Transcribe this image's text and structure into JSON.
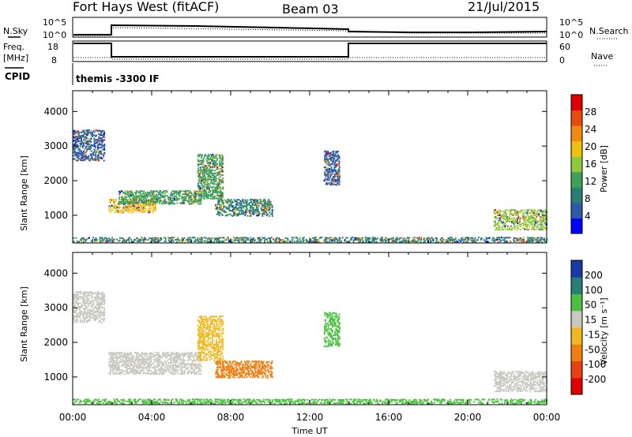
{
  "header": {
    "station": "Fort Hays West (fitACF)",
    "beam": "Beam 03",
    "date": "21/Jul/2015"
  },
  "noise_panel": {
    "left_label": "N.Sky",
    "right_label": "N.Search",
    "left_ticks": [
      "10^5",
      "10^0"
    ],
    "right_ticks": [
      "10^5",
      "10^0"
    ]
  },
  "freq_panel": {
    "left_label_1": "Freq.",
    "left_label_2": "[MHz]",
    "left_ticks": [
      "18",
      "8"
    ],
    "right_label": "Nave",
    "right_ticks": [
      "60",
      "0"
    ]
  },
  "cpid_panel": {
    "label": "CPID",
    "text": "themis -3300 IF"
  },
  "power_panel": {
    "ylabel": "Slant Range [km]",
    "colorbar_label": "Power [dB]",
    "colorbar_ticks": [
      "28",
      "24",
      "20",
      "16",
      "12",
      "8",
      "4"
    ]
  },
  "velocity_panel": {
    "ylabel": "Slant Range [km]",
    "colorbar_label": "Velocity [m s⁻¹]",
    "colorbar_ticks": [
      "200",
      "100",
      "50",
      "15",
      "-15",
      "-50",
      "-100",
      "-200"
    ]
  },
  "xaxis": {
    "label": "Time UT",
    "ticks": [
      "00:00",
      "04:00",
      "08:00",
      "12:00",
      "16:00",
      "20:00",
      "00:00"
    ]
  },
  "colors": {
    "power_scale": [
      "#0000ff",
      "#2a5aa8",
      "#2a7f74",
      "#3ea05a",
      "#8fca3c",
      "#f0c010",
      "#f08a10",
      "#e84a10",
      "#e00000"
    ],
    "velocity_scale": [
      "#1a3aa8",
      "#2a7f74",
      "#4cc040",
      "#c8c8c0",
      "#f0b820",
      "#f07e10",
      "#e84010",
      "#e00000"
    ]
  },
  "chart_data": [
    {
      "type": "heatmap",
      "title": "Power",
      "xlabel": "Time UT",
      "ylabel": "Slant Range [km]",
      "xlim_hours": [
        0,
        24
      ],
      "ylim_km": [
        200,
        4600
      ],
      "yticks": [
        1000,
        2000,
        3000,
        4000
      ],
      "colorbar": {
        "label": "Power [dB]",
        "range": [
          0,
          30
        ],
        "ticks": [
          4,
          8,
          12,
          16,
          20,
          24,
          28
        ]
      },
      "regions": [
        {
          "t": [
            0.0,
            1.6
          ],
          "r": [
            2600,
            3500
          ],
          "value": 6
        },
        {
          "t": [
            1.8,
            4.2
          ],
          "r": [
            1100,
            1500
          ],
          "value": 18
        },
        {
          "t": [
            2.3,
            6.5
          ],
          "r": [
            1350,
            1750
          ],
          "value": 13
        },
        {
          "t": [
            6.3,
            7.6
          ],
          "r": [
            1500,
            2800
          ],
          "value": 10
        },
        {
          "t": [
            7.2,
            10.1
          ],
          "r": [
            1000,
            1500
          ],
          "value": 7
        },
        {
          "t": [
            12.7,
            13.5
          ],
          "r": [
            1900,
            2900
          ],
          "value": 6
        },
        {
          "t": [
            21.3,
            24.0
          ],
          "r": [
            600,
            1200
          ],
          "value": 14
        },
        {
          "t": [
            0.0,
            24.0
          ],
          "r": [
            250,
            400
          ],
          "value": 8
        }
      ]
    },
    {
      "type": "heatmap",
      "title": "Velocity",
      "xlabel": "Time UT",
      "ylabel": "Slant Range [km]",
      "xlim_hours": [
        0,
        24
      ],
      "ylim_km": [
        200,
        4600
      ],
      "yticks": [
        1000,
        2000,
        3000,
        4000
      ],
      "colorbar": {
        "label": "Velocity [m s⁻¹]",
        "range": [
          -250,
          250
        ],
        "ticks": [
          200,
          100,
          50,
          15,
          -15,
          -50,
          -100,
          -200
        ]
      },
      "regions": [
        {
          "t": [
            0.0,
            1.6
          ],
          "r": [
            2600,
            3500
          ],
          "value": 0
        },
        {
          "t": [
            1.8,
            6.5
          ],
          "r": [
            1100,
            1750
          ],
          "value": 0
        },
        {
          "t": [
            6.3,
            7.6
          ],
          "r": [
            1500,
            2800
          ],
          "value": -40
        },
        {
          "t": [
            7.2,
            10.1
          ],
          "r": [
            1000,
            1500
          ],
          "value": -80
        },
        {
          "t": [
            12.7,
            13.5
          ],
          "r": [
            1900,
            2900
          ],
          "value": 20
        },
        {
          "t": [
            21.3,
            24.0
          ],
          "r": [
            600,
            1200
          ],
          "value": 0
        },
        {
          "t": [
            0.0,
            24.0
          ],
          "r": [
            250,
            400
          ],
          "value": 20
        }
      ]
    }
  ]
}
